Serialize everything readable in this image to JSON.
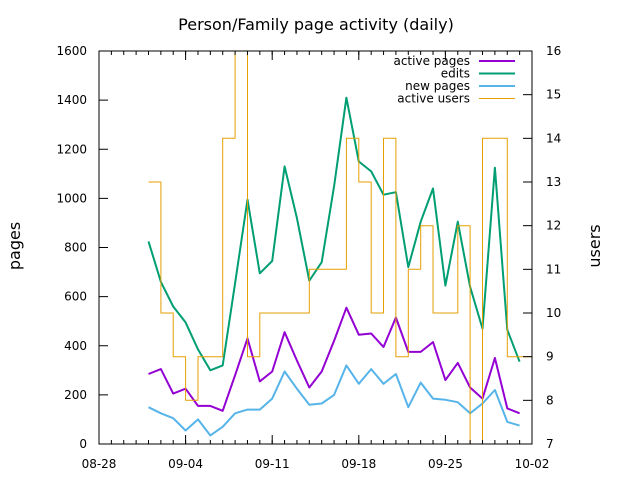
{
  "chart_data": {
    "type": "line",
    "title": "Person/Family page activity (daily)",
    "ylabel": "pages",
    "y2label": "users",
    "xlim": [
      "2023-08-28",
      "2023-10-02"
    ],
    "ylim": [
      0,
      1600
    ],
    "y2lim": [
      7,
      16
    ],
    "x_ticks": [
      "08-28",
      "09-04",
      "09-11",
      "09-18",
      "09-25",
      "10-02"
    ],
    "y_ticks": [
      0,
      200,
      400,
      600,
      800,
      1000,
      1200,
      1400,
      1600
    ],
    "y2_ticks": [
      7,
      8,
      9,
      10,
      11,
      12,
      13,
      14,
      15,
      16
    ],
    "grid": false,
    "legend_position": "top-right",
    "dates": [
      "2023-09-01",
      "2023-09-02",
      "2023-09-03",
      "2023-09-04",
      "2023-09-05",
      "2023-09-06",
      "2023-09-07",
      "2023-09-08",
      "2023-09-09",
      "2023-09-10",
      "2023-09-11",
      "2023-09-12",
      "2023-09-13",
      "2023-09-14",
      "2023-09-15",
      "2023-09-16",
      "2023-09-17",
      "2023-09-18",
      "2023-09-19",
      "2023-09-20",
      "2023-09-21",
      "2023-09-22",
      "2023-09-23",
      "2023-09-24",
      "2023-09-25",
      "2023-09-26",
      "2023-09-27",
      "2023-09-28",
      "2023-09-29",
      "2023-09-30",
      "2023-10-01"
    ],
    "series": [
      {
        "name": "active pages",
        "axis": "y",
        "color": "#9400d3",
        "style": "line",
        "values": [
          285,
          305,
          205,
          225,
          155,
          155,
          135,
          280,
          430,
          255,
          295,
          455,
          340,
          230,
          295,
          420,
          555,
          445,
          450,
          395,
          515,
          375,
          375,
          415,
          260,
          330,
          230,
          185,
          350,
          145,
          125
        ]
      },
      {
        "name": "edits",
        "axis": "y",
        "color": "#009e73",
        "style": "line",
        "values": [
          825,
          660,
          560,
          495,
          385,
          300,
          320,
          655,
          995,
          695,
          745,
          1130,
          920,
          665,
          740,
          1050,
          1410,
          1150,
          1110,
          1015,
          1025,
          720,
          905,
          1040,
          645,
          905,
          640,
          470,
          1125,
          465,
          335
        ]
      },
      {
        "name": "new pages",
        "axis": "y",
        "color": "#56b4e9",
        "style": "line",
        "values": [
          150,
          125,
          105,
          55,
          100,
          35,
          70,
          125,
          140,
          140,
          185,
          295,
          225,
          160,
          165,
          200,
          320,
          245,
          305,
          245,
          285,
          150,
          250,
          185,
          180,
          170,
          125,
          165,
          220,
          90,
          75
        ]
      },
      {
        "name": "active users",
        "axis": "y2",
        "color": "#e69f00",
        "style": "step",
        "values": [
          13,
          10,
          9,
          8,
          9,
          9,
          14,
          16,
          9,
          10,
          10,
          10,
          10,
          11,
          11,
          11,
          14,
          13,
          10,
          14,
          9,
          11,
          12,
          10,
          10,
          12,
          7,
          14,
          14,
          9,
          9
        ]
      }
    ]
  }
}
